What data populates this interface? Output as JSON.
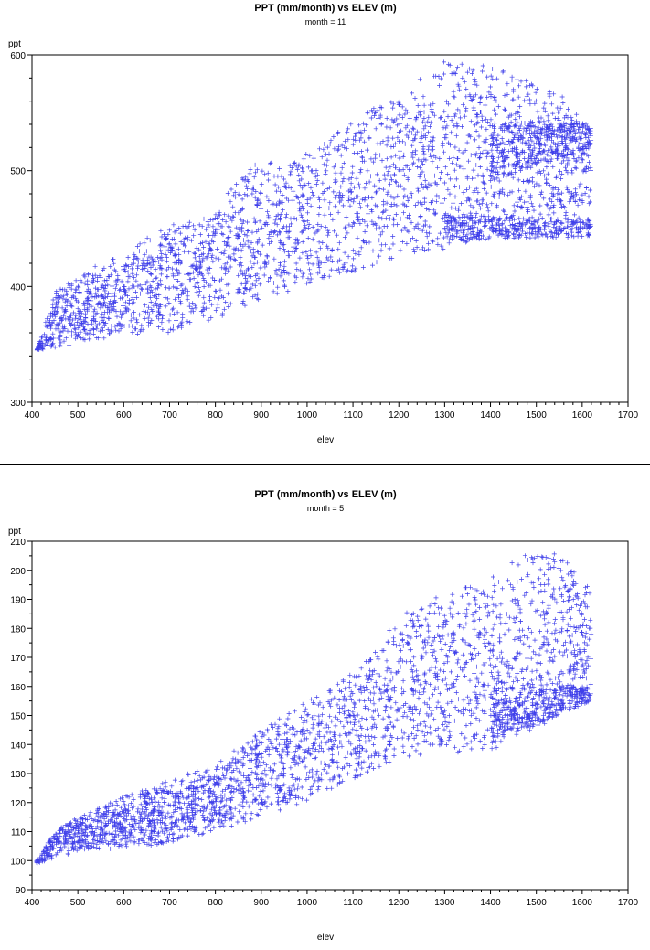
{
  "colors": {
    "marker": "#1f1fe6",
    "frame": "#000000",
    "background": "#ffffff"
  },
  "chart_data": [
    {
      "type": "scatter",
      "title": "PPT (mm/month) vs ELEV (m)",
      "subtitle": "month = 11",
      "xlabel": "elev",
      "ylabel": "ppt",
      "marker": "plus",
      "xlim": [
        400,
        1700
      ],
      "ylim": [
        300,
        600
      ],
      "xticks": [
        400,
        500,
        600,
        700,
        800,
        900,
        1000,
        1100,
        1200,
        1300,
        1400,
        1500,
        1600,
        1700
      ],
      "yticks": [
        300,
        400,
        500,
        600
      ],
      "point_cloud": {
        "upper_boundary": [
          [
            410,
            345
          ],
          [
            450,
            395
          ],
          [
            500,
            410
          ],
          [
            600,
            430
          ],
          [
            700,
            455
          ],
          [
            800,
            465
          ],
          [
            850,
            495
          ],
          [
            900,
            510
          ],
          [
            950,
            505
          ],
          [
            1000,
            515
          ],
          [
            1100,
            545
          ],
          [
            1200,
            565
          ],
          [
            1300,
            595
          ],
          [
            1400,
            592
          ],
          [
            1500,
            575
          ],
          [
            1580,
            560
          ],
          [
            1620,
            540
          ]
        ],
        "lower_boundary": [
          [
            410,
            345
          ],
          [
            500,
            350
          ],
          [
            600,
            358
          ],
          [
            700,
            360
          ],
          [
            800,
            372
          ],
          [
            900,
            385
          ],
          [
            1000,
            400
          ],
          [
            1100,
            412
          ],
          [
            1200,
            425
          ],
          [
            1300,
            432
          ],
          [
            1400,
            440
          ],
          [
            1500,
            445
          ],
          [
            1600,
            443
          ],
          [
            1620,
            445
          ]
        ],
        "branches": [
          {
            "elev": [
              1300,
              1620
            ],
            "ppt_low": [
              440,
              443
            ],
            "ppt_high": [
              462,
              458
            ]
          },
          {
            "elev": [
              1400,
              1620
            ],
            "ppt_low": [
              490,
              520
            ],
            "ppt_high": [
              545,
              540
            ]
          }
        ]
      }
    },
    {
      "type": "scatter",
      "title": "PPT (mm/month) vs ELEV (m)",
      "subtitle": "month = 5",
      "xlabel": "elev",
      "ylabel": "ppt",
      "marker": "plus",
      "xlim": [
        400,
        1700
      ],
      "ylim": [
        90,
        210
      ],
      "xticks": [
        400,
        500,
        600,
        700,
        800,
        900,
        1000,
        1100,
        1200,
        1300,
        1400,
        1500,
        1600,
        1700
      ],
      "yticks": [
        90,
        100,
        110,
        120,
        130,
        140,
        150,
        160,
        170,
        180,
        190,
        200,
        210
      ],
      "point_cloud": {
        "upper_boundary": [
          [
            410,
            100
          ],
          [
            450,
            110
          ],
          [
            500,
            115
          ],
          [
            600,
            122
          ],
          [
            700,
            128
          ],
          [
            800,
            133
          ],
          [
            900,
            145
          ],
          [
            1000,
            155
          ],
          [
            1100,
            165
          ],
          [
            1200,
            185
          ],
          [
            1300,
            192
          ],
          [
            1400,
            198
          ],
          [
            1450,
            205
          ],
          [
            1550,
            206
          ],
          [
            1620,
            193
          ]
        ],
        "lower_boundary": [
          [
            410,
            99
          ],
          [
            500,
            103
          ],
          [
            600,
            104
          ],
          [
            700,
            106
          ],
          [
            800,
            110
          ],
          [
            900,
            115
          ],
          [
            1000,
            120
          ],
          [
            1100,
            128
          ],
          [
            1200,
            135
          ],
          [
            1300,
            137
          ],
          [
            1400,
            138
          ],
          [
            1500,
            145
          ],
          [
            1600,
            155
          ],
          [
            1620,
            157
          ]
        ],
        "branches": [
          {
            "elev": [
              1400,
              1620
            ],
            "ppt_low": [
              140,
              155
            ],
            "ppt_high": [
              160,
              160
            ]
          }
        ]
      }
    }
  ]
}
